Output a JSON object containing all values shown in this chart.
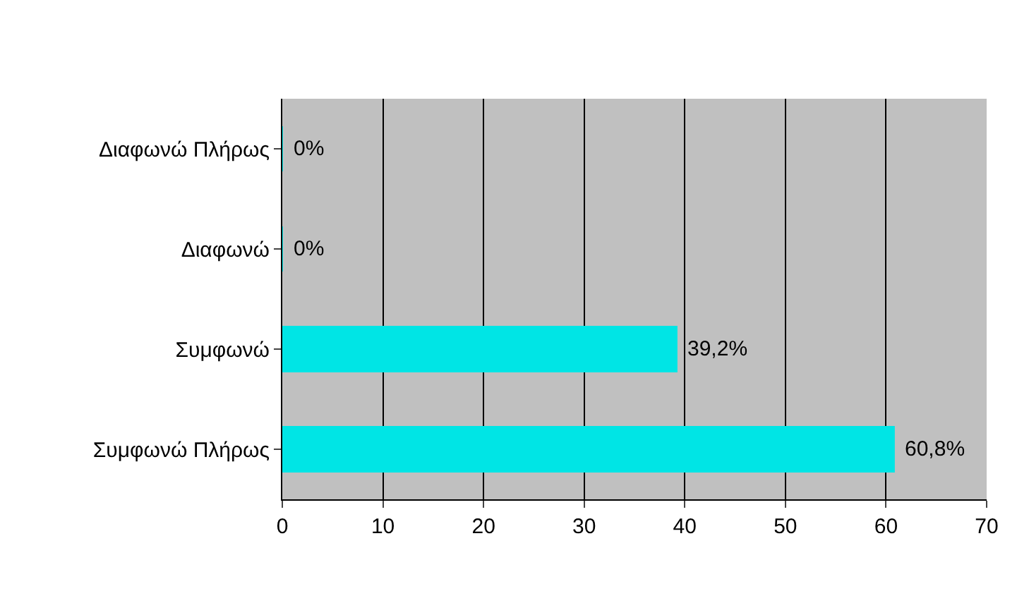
{
  "chart_data": {
    "type": "bar",
    "orientation": "horizontal",
    "categories": [
      "Διαφωνώ Πλήρως",
      "Διαφωνώ",
      "Συμφωνώ",
      "Συμφωνώ Πλήρως"
    ],
    "values": [
      0,
      0,
      39.2,
      60.8
    ],
    "value_labels": [
      "0%",
      "0%",
      "39,2%",
      "60,8%"
    ],
    "color": "#00e5e5",
    "xlim": [
      0,
      70
    ],
    "xticks": [
      0,
      10,
      20,
      30,
      40,
      50,
      60,
      70
    ],
    "grid": "x",
    "legend": false
  }
}
